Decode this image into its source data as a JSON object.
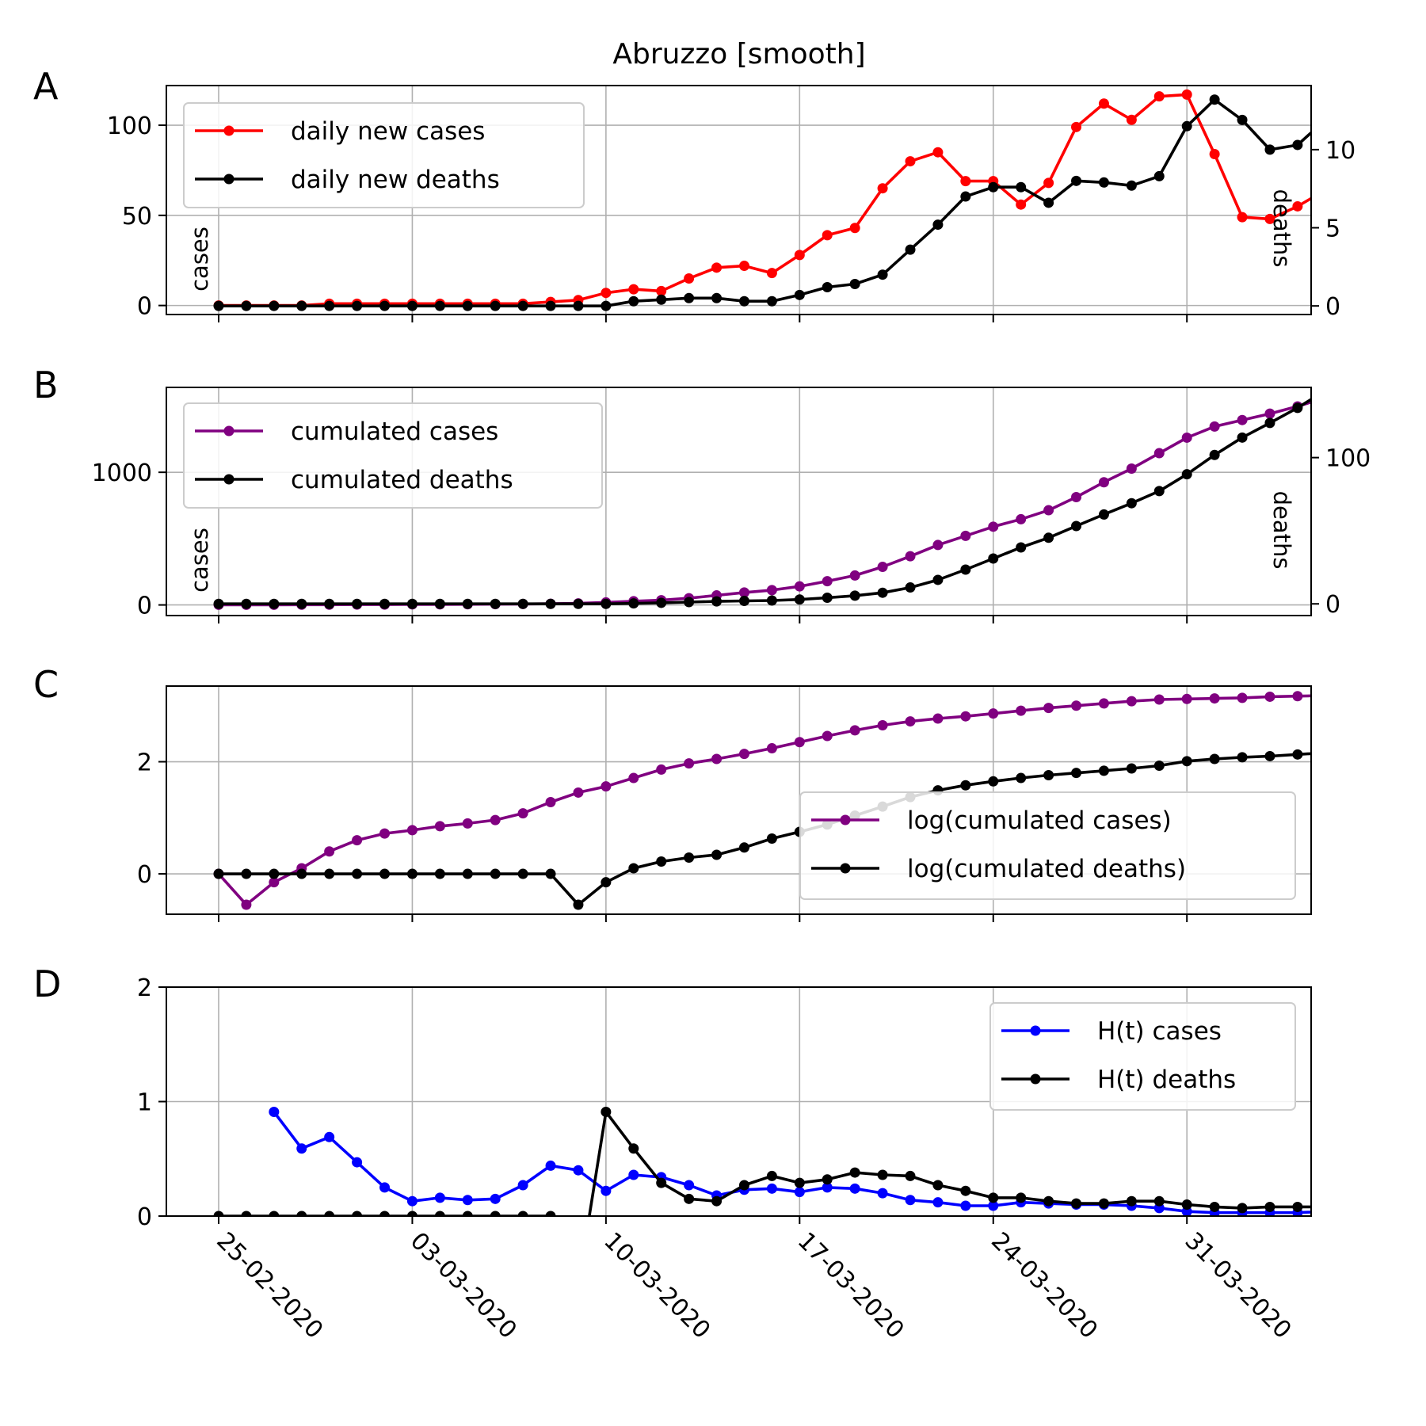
{
  "figure": {
    "title": "Abruzzo [smooth]"
  },
  "x_tick_labels": [
    "25-02-2020",
    "03-03-2020",
    "10-03-2020",
    "17-03-2020",
    "24-03-2020",
    "31-03-2020"
  ],
  "colors": {
    "red": "#ff0000",
    "black": "#000000",
    "purple": "#800080",
    "blue": "#0000ff",
    "grid": "#b0b0b0"
  },
  "chart_data": [
    {
      "id": "A",
      "type": "line",
      "panel_label": "A",
      "xlabel": "",
      "ylabel": "cases",
      "y2label": "deaths",
      "x_start": "2020-02-25",
      "ylim": [
        -5,
        122
      ],
      "y2lim": [
        -0.55,
        14.1
      ],
      "yticks": [
        0,
        50,
        100
      ],
      "y2ticks": [
        0,
        5,
        10
      ],
      "grid": true,
      "legend_position": "upper-left",
      "series": [
        {
          "name": "daily new cases",
          "color": "#ff0000",
          "axis": "left",
          "values": [
            0,
            0,
            0,
            0,
            1,
            1,
            1,
            1,
            1,
            1,
            1,
            1,
            2,
            3,
            7,
            9,
            8,
            15,
            21,
            22,
            18,
            28,
            39,
            43,
            65,
            80,
            85,
            69,
            69,
            56,
            68,
            99,
            112,
            103,
            116,
            117,
            84,
            49,
            48,
            55,
            64
          ]
        },
        {
          "name": "daily new deaths",
          "color": "#000000",
          "axis": "right",
          "values": [
            0,
            0,
            0,
            0,
            0,
            0,
            0,
            0,
            0,
            0,
            0,
            0,
            0,
            0,
            0,
            0.3,
            0.4,
            0.5,
            0.5,
            0.3,
            0.3,
            0.7,
            1.2,
            1.4,
            2,
            3.6,
            5.2,
            7,
            7.6,
            7.6,
            6.6,
            8,
            7.9,
            7.7,
            8.3,
            11.5,
            13.2,
            11.9,
            10,
            10.3,
            11.9
          ]
        }
      ]
    },
    {
      "id": "B",
      "type": "line",
      "panel_label": "B",
      "xlabel": "",
      "ylabel": "cases",
      "y2label": "deaths",
      "x_start": "2020-02-25",
      "ylim": [
        -80,
        1640
      ],
      "y2lim": [
        -8,
        148
      ],
      "yticks": [
        0,
        1000
      ],
      "y2ticks": [
        0,
        100
      ],
      "grid": true,
      "legend_position": "upper-left",
      "series": [
        {
          "name": "cumulated cases",
          "color": "#800080",
          "axis": "left",
          "values": [
            1,
            1,
            1,
            2,
            2,
            3,
            3,
            4,
            4,
            5,
            6,
            7,
            9,
            12,
            19,
            28,
            36,
            51,
            72,
            94,
            112,
            140,
            179,
            222,
            287,
            367,
            452,
            521,
            590,
            646,
            714,
            813,
            925,
            1028,
            1144,
            1261,
            1345,
            1394,
            1442,
            1497,
            1561
          ]
        },
        {
          "name": "cumulated deaths",
          "color": "#000000",
          "axis": "right",
          "values": [
            0,
            0,
            0,
            0,
            0,
            0,
            0,
            0,
            0,
            0,
            0,
            0,
            0,
            0,
            0,
            0.3,
            0.7,
            1.2,
            1.7,
            2,
            2.3,
            3,
            4.2,
            5.6,
            7.6,
            11.2,
            16.4,
            23.4,
            31,
            38.6,
            45.2,
            53.2,
            61.1,
            68.8,
            77.1,
            88.6,
            101.8,
            113.7,
            123.7,
            134,
            145.9
          ]
        }
      ]
    },
    {
      "id": "C",
      "type": "line",
      "panel_label": "C",
      "xlabel": "",
      "ylabel": "",
      "x_start": "2020-02-25",
      "ylim": [
        -0.72,
        3.35
      ],
      "yticks": [
        0,
        2
      ],
      "grid": true,
      "legend_position": "lower-right",
      "series": [
        {
          "name": "log(cumulated cases)",
          "color": "#800080",
          "axis": "left",
          "values": [
            0,
            -0.55,
            -0.15,
            0.1,
            0.4,
            0.6,
            0.72,
            0.78,
            0.85,
            0.9,
            0.96,
            1.08,
            1.28,
            1.45,
            1.56,
            1.71,
            1.86,
            1.97,
            2.05,
            2.14,
            2.24,
            2.35,
            2.46,
            2.56,
            2.65,
            2.72,
            2.77,
            2.81,
            2.86,
            2.91,
            2.96,
            3.0,
            3.04,
            3.08,
            3.11,
            3.12,
            3.13,
            3.14,
            3.16,
            3.17,
            3.18
          ]
        },
        {
          "name": "log(cumulated deaths)",
          "color": "#000000",
          "axis": "left",
          "values": [
            0,
            0,
            0,
            0,
            0,
            0,
            0,
            0,
            0,
            0,
            0,
            0,
            0,
            -0.55,
            -0.15,
            0.1,
            0.22,
            0.29,
            0.34,
            0.47,
            0.63,
            0.75,
            0.88,
            1.04,
            1.2,
            1.37,
            1.49,
            1.58,
            1.65,
            1.71,
            1.76,
            1.8,
            1.84,
            1.88,
            1.93,
            2.01,
            2.05,
            2.08,
            2.1,
            2.13,
            2.16
          ]
        }
      ]
    },
    {
      "id": "D",
      "type": "line",
      "panel_label": "D",
      "xlabel": "",
      "ylabel": "",
      "x_start": "2020-02-25",
      "ylim": [
        0,
        2
      ],
      "yticks": [
        0,
        1,
        2
      ],
      "grid": true,
      "legend_position": "upper-right",
      "series": [
        {
          "name": "H(t) cases",
          "color": "#0000ff",
          "axis": "left",
          "values": [
            null,
            null,
            0.91,
            0.59,
            0.69,
            0.47,
            0.25,
            0.13,
            0.16,
            0.14,
            0.15,
            0.27,
            0.44,
            0.4,
            0.22,
            0.36,
            0.34,
            0.27,
            0.18,
            0.23,
            0.24,
            0.21,
            0.25,
            0.24,
            0.2,
            0.14,
            0.12,
            0.09,
            0.09,
            0.12,
            0.11,
            0.1,
            0.1,
            0.09,
            0.07,
            0.04,
            0.03,
            0.03,
            0.03,
            0.03,
            0.04
          ]
        },
        {
          "name": "H(t) deaths",
          "color": "#000000",
          "axis": "left",
          "values": [
            0,
            0,
            0,
            0,
            0,
            0,
            0,
            0,
            0,
            0,
            0,
            0,
            0,
            -0.6,
            0.91,
            0.59,
            0.29,
            0.15,
            0.13,
            0.27,
            0.35,
            0.29,
            0.32,
            0.38,
            0.36,
            0.35,
            0.27,
            0.22,
            0.16,
            0.16,
            0.13,
            0.11,
            0.11,
            0.13,
            0.13,
            0.1,
            0.08,
            0.07,
            0.08,
            0.08,
            0.08
          ]
        }
      ]
    }
  ]
}
